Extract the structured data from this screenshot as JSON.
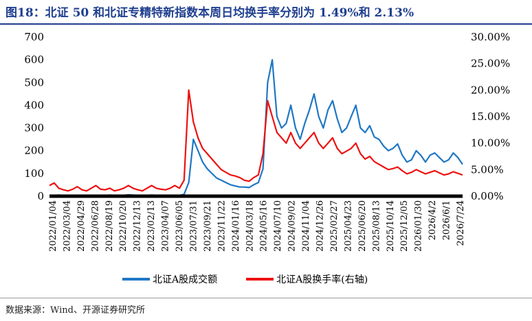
{
  "title": "图18：北证 50 和北证专精特新指数本周日均换手率分别为 1.49%和 2.13%",
  "source": "数据来源：Wind、开源证券研究所",
  "colors": {
    "title": "#1f3f8f",
    "volume": "#1f77c4",
    "turnover": "#ee1111",
    "base": "#000000"
  },
  "chart_data": {
    "type": "line",
    "x_tick_labels": [
      "2022/01/04",
      "2022/03/04",
      "2022/04/29",
      "2022/06/28",
      "2022/08/19",
      "2022/10/20",
      "2022/12/13",
      "2023/02/13",
      "2023/04/07",
      "2023/06/05",
      "2023/07/31",
      "2023/09/21",
      "2023/11/22",
      "2024/01/16",
      "2024/03/18",
      "2024/05/16",
      "2024/07/10",
      "2024/09/02",
      "2024/11/04",
      "2024/12/26",
      "2025/02/27",
      "2025/04/23",
      "2025/06/20",
      "2025/08/13",
      "2025/10/14",
      "2025/12/05",
      "2026/01/30",
      "2026/4/2",
      "2026/6/1",
      "2026/7/24"
    ],
    "y_left": {
      "ylim": [
        0,
        700
      ],
      "ticks": [
        "0",
        "100",
        "200",
        "300",
        "400",
        "500",
        "600",
        "700"
      ]
    },
    "y_right": {
      "ylim": [
        0,
        30
      ],
      "ticks": [
        "0.00%",
        "5.00%",
        "10.00%",
        "15.00%",
        "20.00%",
        "25.00%",
        "30.00%"
      ]
    },
    "series": [
      {
        "name": "北证A股成交额",
        "axis": "left",
        "values": [
          3,
          4,
          5,
          4,
          3,
          4,
          3,
          4,
          3,
          3,
          4,
          3,
          4,
          5,
          4,
          3,
          4,
          6,
          5,
          4,
          3,
          4,
          5,
          4,
          3,
          3,
          4,
          3,
          4,
          8,
          60,
          250,
          200,
          150,
          120,
          100,
          80,
          70,
          60,
          50,
          45,
          40,
          40,
          38,
          50,
          60,
          120,
          500,
          600,
          350,
          300,
          320,
          400,
          300,
          250,
          320,
          380,
          450,
          350,
          300,
          380,
          420,
          340,
          280,
          300,
          350,
          400,
          300,
          280,
          310,
          260,
          250,
          220,
          200,
          210,
          230,
          180,
          150,
          160,
          200,
          180,
          150,
          180,
          190,
          170,
          150,
          160,
          190,
          170,
          140
        ]
      },
      {
        "name": "北证A股换手率(右轴)",
        "axis": "right",
        "values": [
          2.0,
          2.5,
          1.5,
          1.2,
          1.0,
          1.3,
          1.8,
          1.2,
          1.0,
          1.5,
          2.0,
          1.3,
          1.2,
          1.5,
          1.0,
          1.2,
          1.5,
          2.0,
          1.5,
          1.2,
          1.0,
          1.5,
          2.0,
          1.5,
          1.3,
          1.2,
          1.5,
          2.0,
          1.5,
          3.0,
          20.0,
          14.0,
          11.0,
          9.0,
          8.0,
          7.0,
          6.0,
          5.0,
          4.5,
          4.0,
          3.8,
          3.5,
          3.0,
          2.8,
          3.5,
          4.0,
          8.0,
          18.0,
          15.0,
          12.0,
          11.0,
          10.0,
          12.0,
          10.0,
          9.0,
          10.0,
          11.0,
          12.0,
          10.0,
          9.0,
          10.0,
          11.0,
          9.0,
          8.0,
          8.5,
          9.0,
          10.0,
          8.0,
          7.0,
          7.5,
          6.5,
          6.0,
          5.5,
          5.0,
          5.2,
          5.5,
          4.8,
          4.2,
          4.5,
          5.0,
          4.6,
          4.2,
          4.5,
          4.8,
          4.4,
          4.0,
          4.2,
          4.6,
          4.3,
          4.0
        ]
      }
    ],
    "legend_position": "bottom"
  }
}
